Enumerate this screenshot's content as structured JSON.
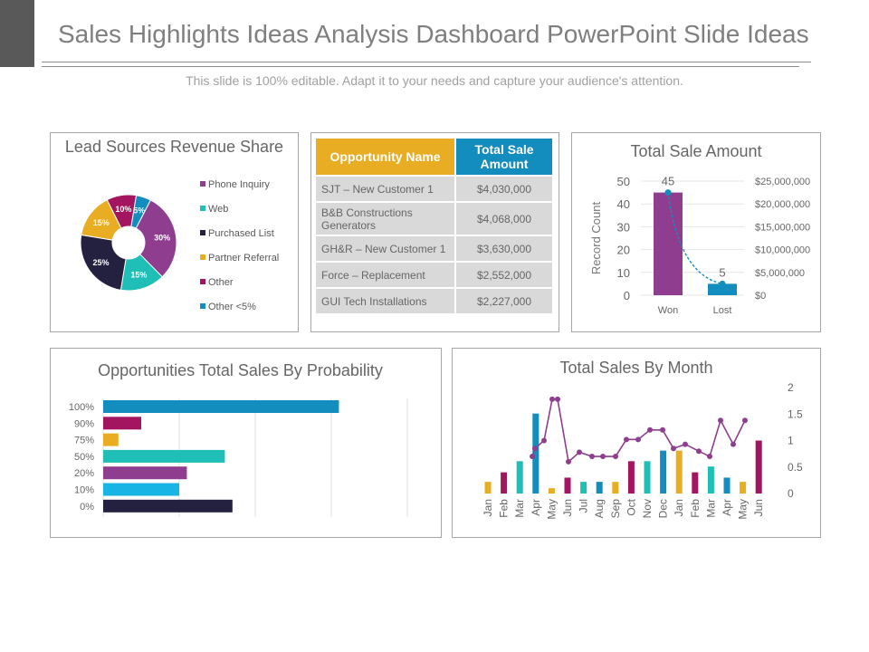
{
  "header": {
    "title": "Sales Highlights Ideas Analysis Dashboard PowerPoint Slide Ideas",
    "subtitle": "This slide is 100% editable. Adapt it to your needs and capture your audience's attention."
  },
  "colors": {
    "purple": "#8e3d8f",
    "teal": "#1fbfb8",
    "navy": "#24203f",
    "orange": "#e8ad23",
    "magenta": "#a3155f",
    "blue": "#138dbd",
    "cyan": "#17b4e4"
  },
  "table": {
    "headers": [
      "Opportunity Name",
      "Total Sale Amount"
    ],
    "rows": [
      {
        "name": "SJT – New Customer 1",
        "amount": "$4,030,000"
      },
      {
        "name": "B&B Constructions Generators",
        "amount": "$4,068,000"
      },
      {
        "name": "GH&R – New Customer 1",
        "amount": "$3,630,000"
      },
      {
        "name": "Force – Replacement",
        "amount": "$2,552,000"
      },
      {
        "name": "GUI Tech Installations",
        "amount": "$2,227,000"
      }
    ]
  },
  "chart_data": [
    {
      "type": "pie",
      "title": "Lead Sources Revenue Share",
      "categories": [
        "Phone Inquiry",
        "Web",
        "Purchased List",
        "Partner Referral",
        "Other",
        "Other <5%"
      ],
      "values": [
        30,
        15,
        25,
        15,
        10,
        5
      ],
      "labels": [
        "30%",
        "15%",
        "25%",
        "15%",
        "10%",
        "5%"
      ],
      "colors": [
        "#8e3d8f",
        "#1fbfb8",
        "#24203f",
        "#e8ad23",
        "#a3155f",
        "#138dbd"
      ],
      "legend": "right"
    },
    {
      "type": "bar",
      "title": "Total Sale Amount",
      "categories": [
        "Won",
        "Lost"
      ],
      "values": [
        45,
        5
      ],
      "ylabel": "Record Count",
      "ylim": [
        0,
        50
      ],
      "yticks": [
        "0",
        "10",
        "20",
        "30",
        "40",
        "50"
      ],
      "y2ticks": [
        "$0",
        "$5,000,000",
        "$10,000,000",
        "$15,000,000",
        "$20,000,000",
        "$25,000,000"
      ],
      "data_labels": [
        "45",
        "5"
      ],
      "line_series": {
        "name": "Total Sale Amount",
        "style": "dashed"
      }
    },
    {
      "type": "bar",
      "orientation": "horizontal",
      "title": "Opportunities Total Sales By Probability",
      "categories": [
        "100%",
        "90%",
        "75%",
        "50%",
        "20%",
        "10%",
        "0%"
      ],
      "values": [
        62,
        10,
        4,
        32,
        22,
        20,
        34
      ],
      "xlim": [
        0,
        80
      ],
      "colors": [
        "#138dbd",
        "#a3155f",
        "#e8ad23",
        "#1fbfb8",
        "#8e3d8f",
        "#17b4e4",
        "#24203f"
      ]
    },
    {
      "type": "bar",
      "title": "Total Sales By Month",
      "categories": [
        "Jan",
        "Feb",
        "Mar",
        "Apr",
        "May",
        "Jun",
        "Jul",
        "Aug",
        "Sep",
        "Oct",
        "Nov",
        "Dec",
        "Jan",
        "Feb",
        "Mar",
        "Apr",
        "May",
        "Jun"
      ],
      "values": [
        0.22,
        0.4,
        0.61,
        1.51,
        0.1,
        0.3,
        0.22,
        0.22,
        0.22,
        0.61,
        0.61,
        0.81,
        0.81,
        0.4,
        0.51,
        0.3,
        0.22,
        1.0
      ],
      "colors": [
        "#e8ad23",
        "#a3155f",
        "#1fbfb8",
        "#138dbd",
        "#e8ad23",
        "#a3155f",
        "#1fbfb8",
        "#138dbd",
        "#e8ad23",
        "#a3155f",
        "#1fbfb8",
        "#138dbd",
        "#e8ad23",
        "#a3155f",
        "#1fbfb8",
        "#138dbd",
        "#e8ad23",
        "#a3155f"
      ],
      "line_values": [
        null,
        null,
        0.7,
        0.85,
        1.0,
        1.78,
        1.78,
        0.6,
        0.78,
        0.7,
        0.7,
        0.7,
        1.02,
        1.02,
        1.2,
        1.2,
        0.85,
        0.93,
        0.8,
        0.7,
        1.38,
        0.93,
        1.38
      ],
      "line_x": [
        "Feb",
        "Mar",
        "Mar",
        "Apr",
        "Apr",
        "Apr",
        "May",
        "Jun",
        "Jul",
        "Jul",
        "Aug",
        "Sep",
        "Sep",
        "Oct",
        "Nov",
        "Dec",
        "Dec",
        "Jan",
        "Feb",
        "Feb",
        "Mar",
        "Apr",
        "May"
      ],
      "ylim": [
        0,
        2
      ],
      "yticks": [
        "0",
        "0.5",
        "1",
        "1.5",
        "2"
      ],
      "y_axis_side": "right"
    }
  ]
}
